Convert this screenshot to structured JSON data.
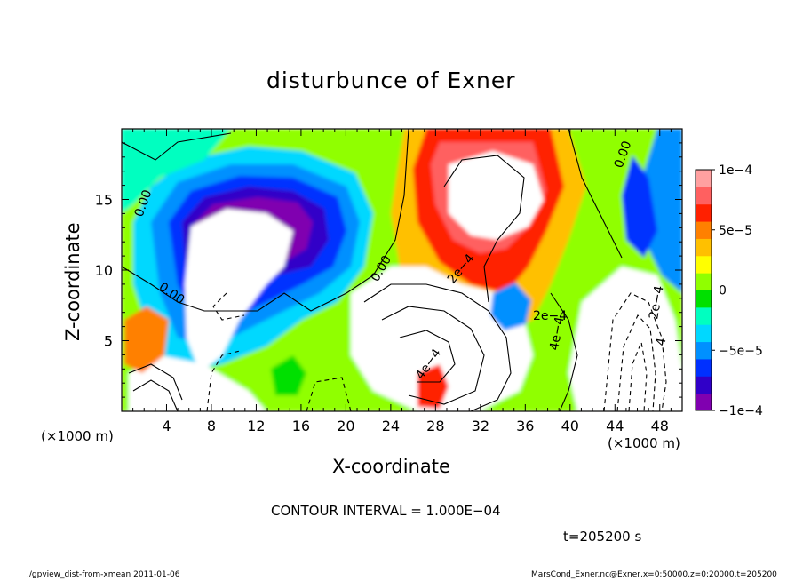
{
  "chart_data": {
    "type": "heatmap",
    "title": "disturbunce of Exner",
    "xlabel": "X-coordinate",
    "ylabel": "Z-coordinate",
    "x_unit_label_left": "(×1000 m)",
    "x_unit_label_right": "(×1000 m)",
    "xlim": [
      0,
      50
    ],
    "ylim": [
      0,
      20
    ],
    "x_ticks": [
      4,
      8,
      12,
      16,
      20,
      24,
      28,
      32,
      36,
      40,
      44,
      48
    ],
    "x_tick_labels": [
      "4",
      "8",
      "12",
      "16",
      "20",
      "24",
      "28",
      "32",
      "36",
      "40",
      "44",
      "48"
    ],
    "y_ticks": [
      5,
      10,
      15
    ],
    "y_tick_labels": [
      "5",
      "10",
      "15"
    ],
    "colorbar": {
      "range": [
        -0.0001,
        0.0001
      ],
      "tick_values": [
        -0.0001,
        -5e-05,
        0,
        5e-05,
        0.0001
      ],
      "tick_labels": [
        "−1e−4",
        "−5e−5",
        "0",
        "5e−5",
        "1e−4"
      ],
      "colors": [
        "#8000b0",
        "#3000c8",
        "#0030ff",
        "#0090ff",
        "#00d8ff",
        "#00ffc0",
        "#00e000",
        "#90ff00",
        "#ffff00",
        "#ffc000",
        "#ff8000",
        "#ff2000",
        "#ff6060",
        "#ffa0a0"
      ]
    },
    "contour_labels": [
      "0.00",
      "0.00",
      "0.00",
      "0.00",
      "2e−4",
      "4e−4",
      "4e−4",
      "2e−4",
      "2e−4",
      "4"
    ],
    "contour_interval_text": "CONTOUR INTERVAL = 1.000E−04",
    "time_text": "t=205200 s",
    "grid": false
  },
  "footer": {
    "left": "./gpview_dist-from-xmean  2011-01-06",
    "right": "MarsCond_Exner.nc@Exner,x=0:50000,z=0:20000,t=205200"
  }
}
